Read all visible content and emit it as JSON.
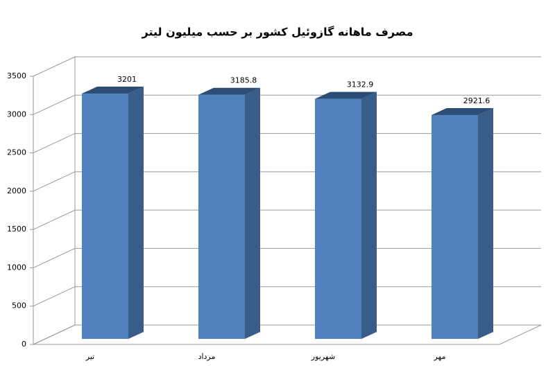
{
  "chart_data": {
    "type": "bar3d",
    "title": "مصرف ماهانه گازوئیل کشور بر حسب میلیون لیتر",
    "categories": [
      "تیر",
      "مرداد",
      "شهریور",
      "مهر"
    ],
    "values": [
      3201,
      3185.8,
      3132.9,
      2921.6
    ],
    "color": "#4f81bd",
    "ylim": [
      0,
      3500
    ],
    "yticks": [
      0,
      500,
      1000,
      1500,
      2000,
      2500,
      3000,
      3500
    ],
    "grid": true
  }
}
